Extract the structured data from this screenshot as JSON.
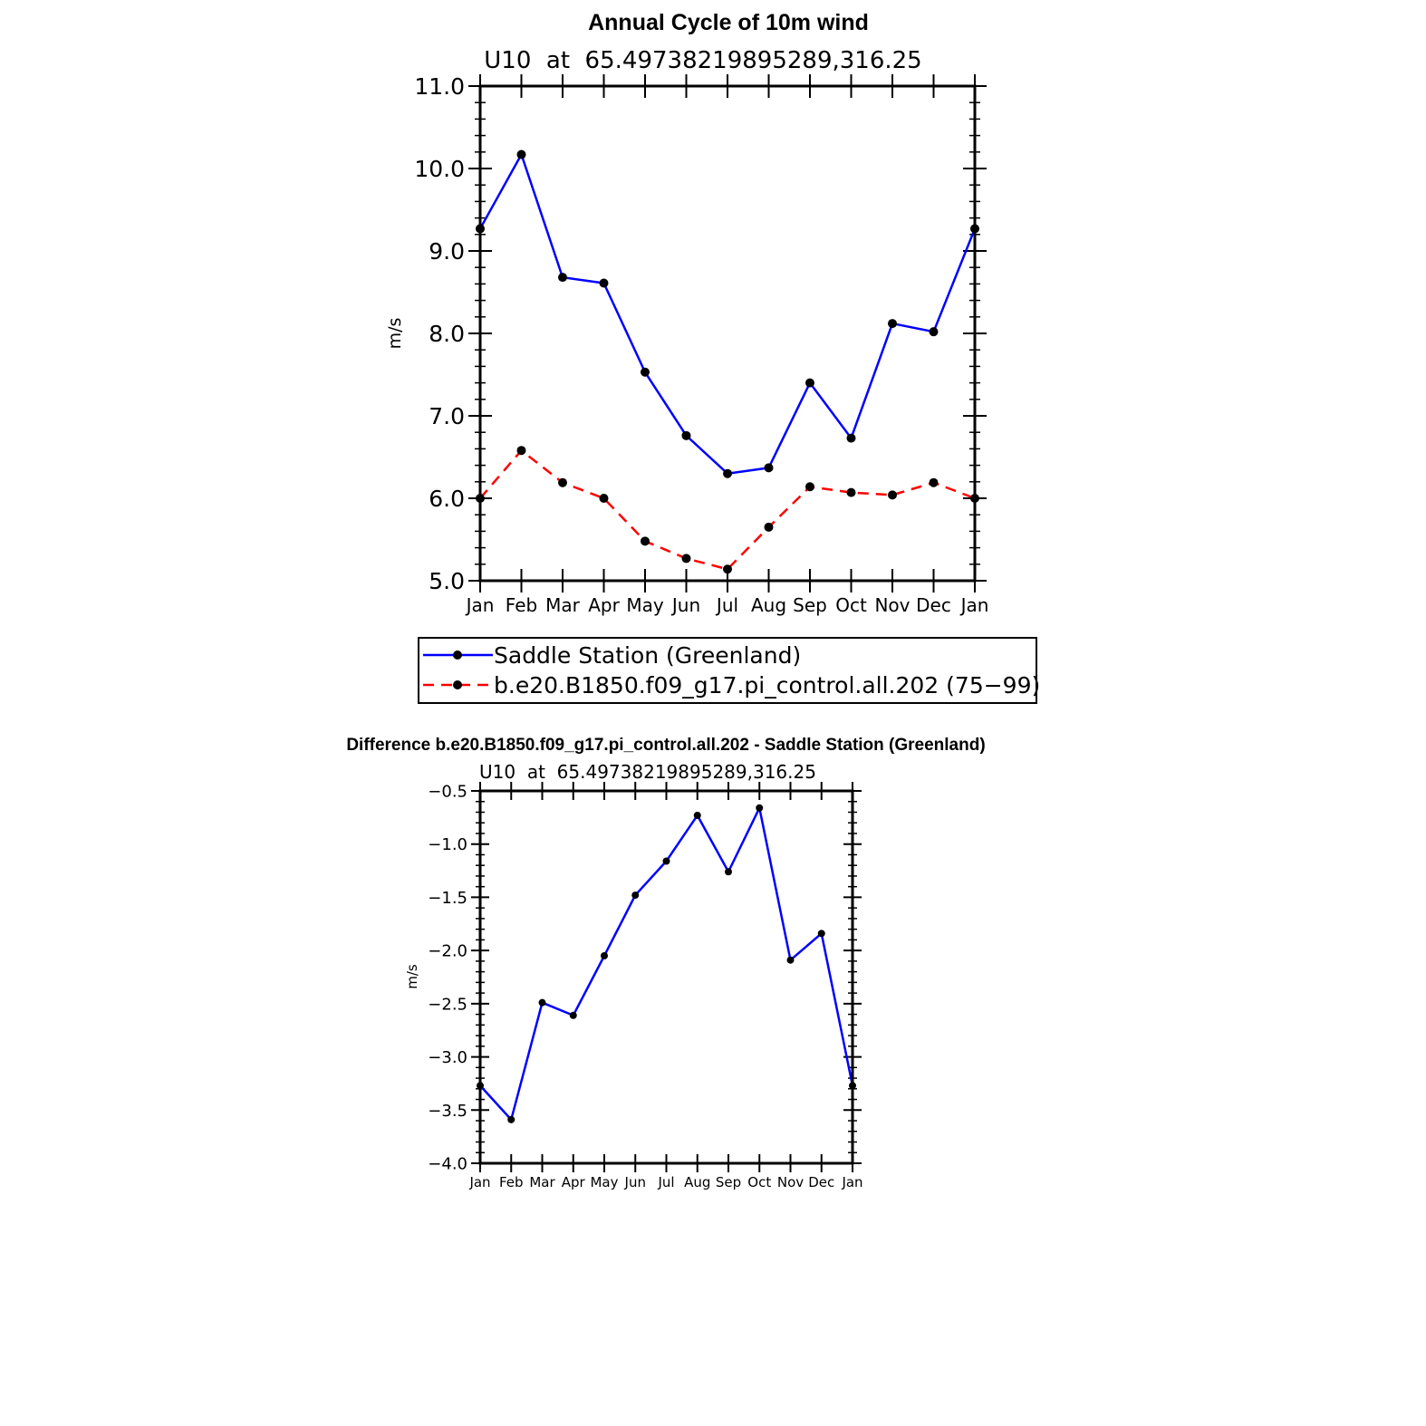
{
  "chart_data": [
    {
      "type": "line",
      "title": "Annual Cycle of 10m wind",
      "subtitle": "U10  at  65.49738219895289,316.25",
      "xlabel": "",
      "ylabel": "m/s",
      "categories": [
        "Jan",
        "Feb",
        "Mar",
        "Apr",
        "May",
        "Jun",
        "Jul",
        "Aug",
        "Sep",
        "Oct",
        "Nov",
        "Dec",
        "Jan"
      ],
      "ylim": [
        5.0,
        11.0
      ],
      "yticks": [
        "5.0",
        "6.0",
        "7.0",
        "8.0",
        "9.0",
        "10.0",
        "11.0"
      ],
      "grid": false,
      "legend_position": "bottom",
      "series": [
        {
          "name": "Saddle Station (Greenland)",
          "color": "#0000ff",
          "dash": "solid",
          "values": [
            9.27,
            10.17,
            8.68,
            8.61,
            7.53,
            6.76,
            6.3,
            6.37,
            7.4,
            6.73,
            8.12,
            8.02,
            9.27
          ]
        },
        {
          "name": "b.e20.B1850.f09_g17.pi_control.all.202 (75−99)",
          "color": "#ff0000",
          "dash": "dashed",
          "values": [
            6.0,
            6.58,
            6.19,
            6.0,
            5.48,
            5.27,
            5.14,
            5.65,
            6.14,
            6.07,
            6.04,
            6.19,
            6.0
          ]
        }
      ]
    },
    {
      "type": "line",
      "title": "Difference b.e20.B1850.f09_g17.pi_control.all.202 - Saddle Station (Greenland)",
      "subtitle": "U10  at  65.49738219895289,316.25",
      "xlabel": "",
      "ylabel": "m/s",
      "categories": [
        "Jan",
        "Feb",
        "Mar",
        "Apr",
        "May",
        "Jun",
        "Jul",
        "Aug",
        "Sep",
        "Oct",
        "Nov",
        "Dec",
        "Jan"
      ],
      "ylim": [
        -4.0,
        -0.5
      ],
      "yticks": [
        "−4.0",
        "−3.5",
        "−3.0",
        "−2.5",
        "−2.0",
        "−1.5",
        "−1.0",
        "−0.5"
      ],
      "grid": false,
      "series": [
        {
          "color": "#0000ff",
          "dash": "solid",
          "values": [
            -3.27,
            -3.59,
            -2.49,
            -2.61,
            -2.05,
            -1.48,
            -1.16,
            -0.73,
            -1.26,
            -0.66,
            -2.09,
            -1.84,
            -3.27
          ]
        }
      ]
    }
  ]
}
